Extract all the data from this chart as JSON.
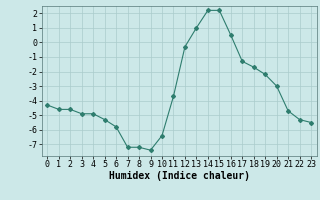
{
  "x": [
    0,
    1,
    2,
    3,
    4,
    5,
    6,
    7,
    8,
    9,
    10,
    11,
    12,
    13,
    14,
    15,
    16,
    17,
    18,
    19,
    20,
    21,
    22,
    23
  ],
  "y": [
    -4.3,
    -4.6,
    -4.6,
    -4.9,
    -4.9,
    -5.3,
    -5.8,
    -7.2,
    -7.2,
    -7.4,
    -6.4,
    -3.7,
    -0.3,
    1.0,
    2.2,
    2.2,
    0.5,
    -1.3,
    -1.7,
    -2.2,
    -3.0,
    -4.7,
    -5.3,
    -5.5
  ],
  "line_color": "#2e7d6e",
  "marker": "D",
  "marker_size": 2,
  "bg_color": "#cce8e8",
  "grid_color": "#aacccc",
  "xlabel": "Humidex (Indice chaleur)",
  "xlabel_fontsize": 7,
  "tick_fontsize": 6,
  "ylim": [
    -7.8,
    2.5
  ],
  "xlim": [
    -0.5,
    23.5
  ],
  "yticks": [
    -7,
    -6,
    -5,
    -4,
    -3,
    -2,
    -1,
    0,
    1,
    2
  ],
  "xticks": [
    0,
    1,
    2,
    3,
    4,
    5,
    6,
    7,
    8,
    9,
    10,
    11,
    12,
    13,
    14,
    15,
    16,
    17,
    18,
    19,
    20,
    21,
    22,
    23
  ]
}
